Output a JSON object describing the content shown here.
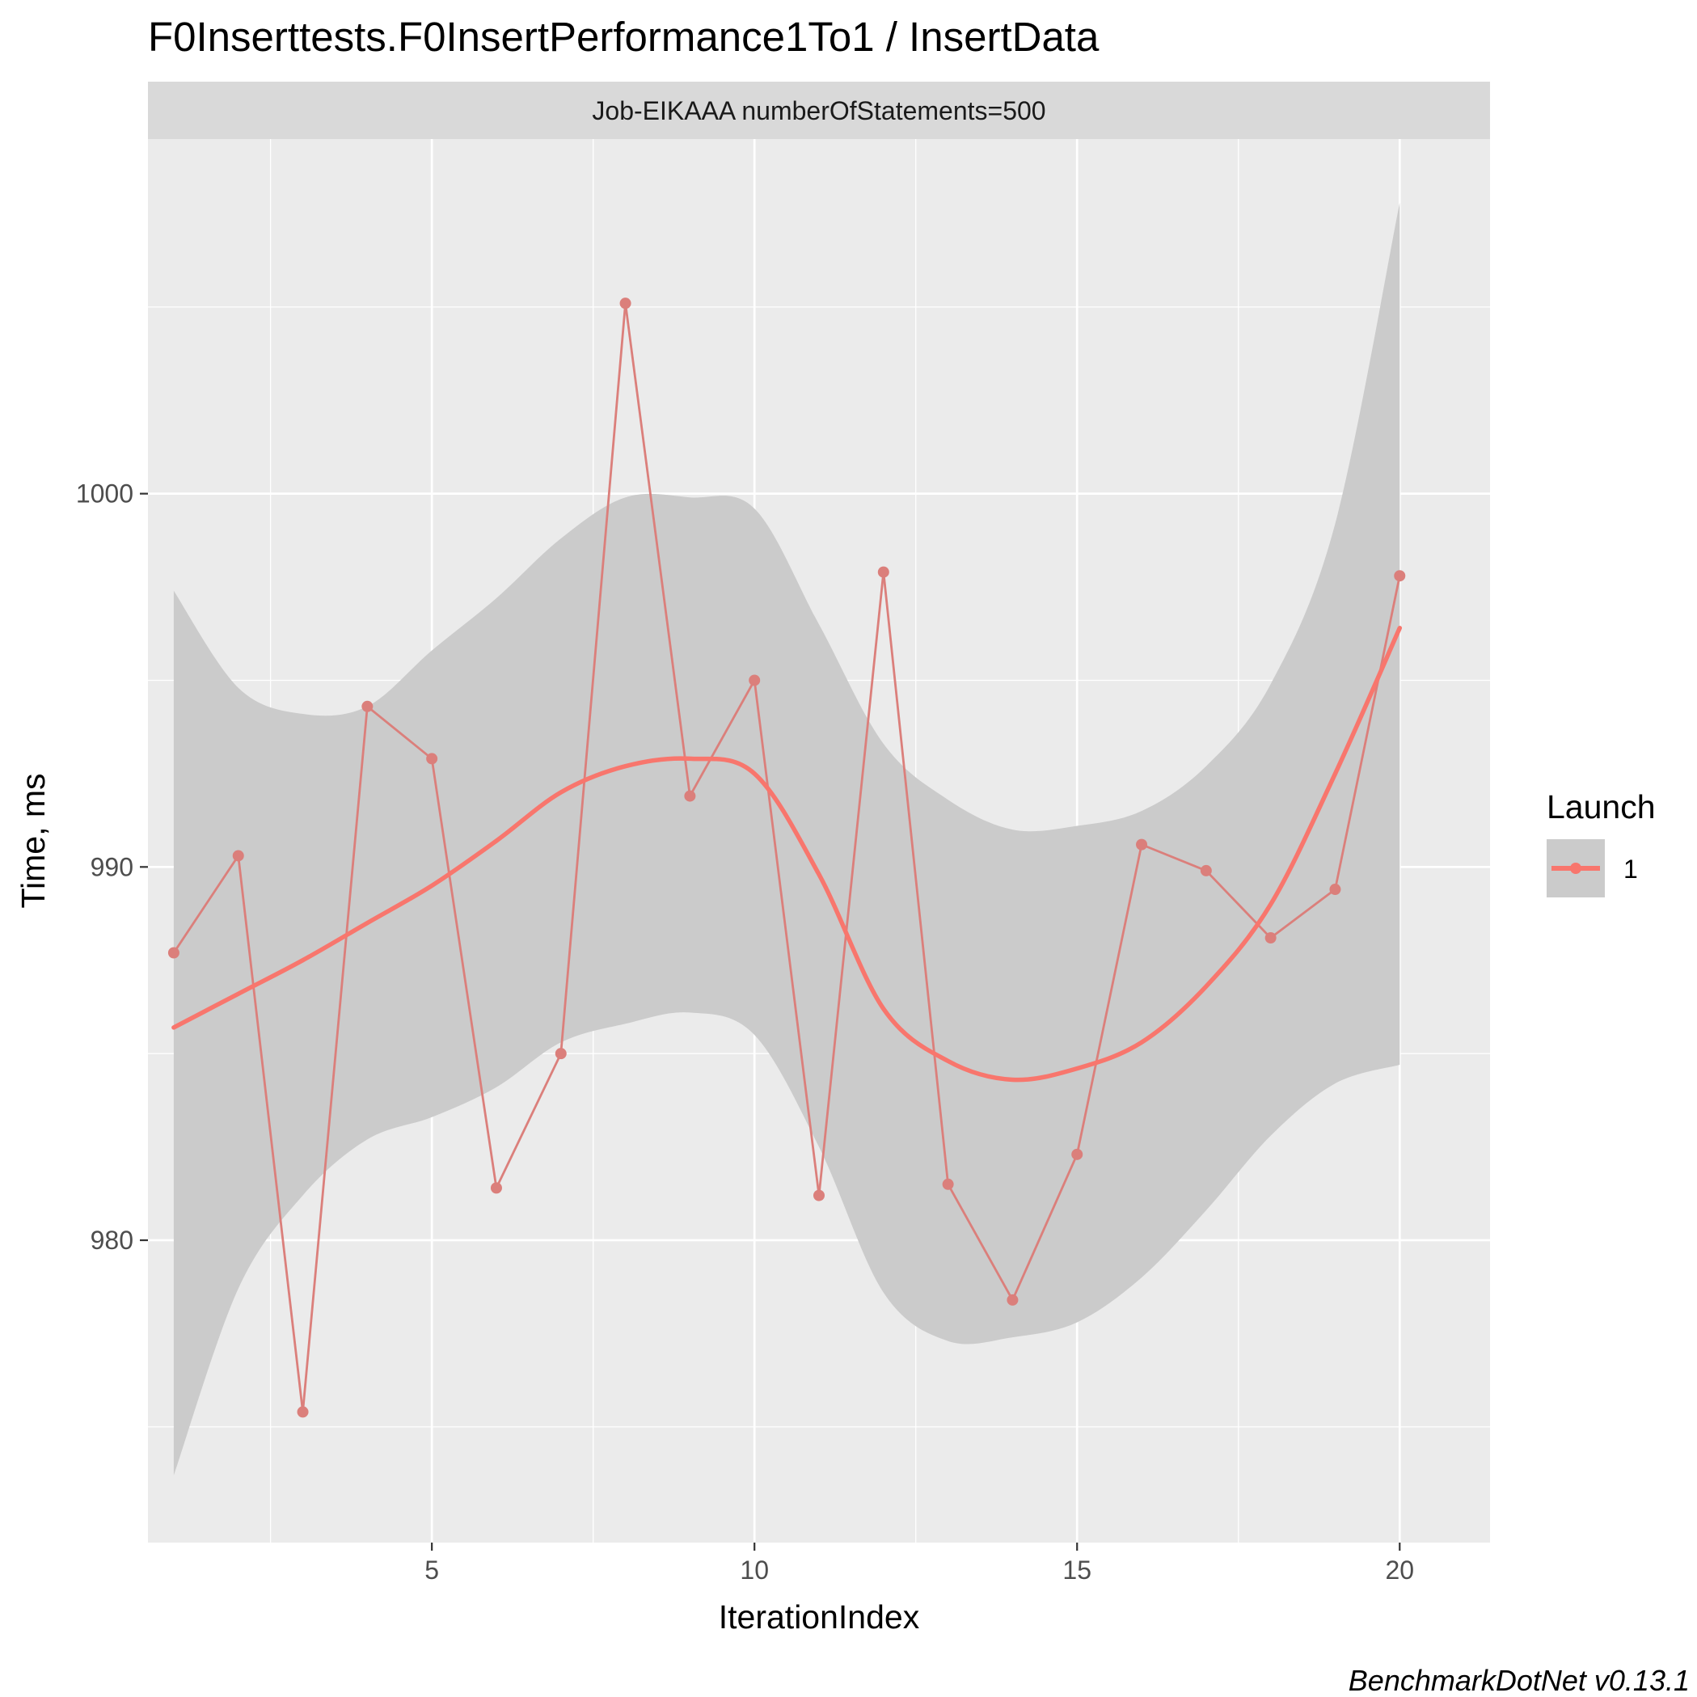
{
  "chart_data": {
    "type": "line",
    "title": "F0Inserttests.F0InsertPerformance1To1 / InsertData",
    "facet_label": "Job-EIKAAA numberOfStatements=500",
    "xlabel": "IterationIndex",
    "ylabel": "Time, ms",
    "xlim": [
      0.6,
      21.4
    ],
    "ylim": [
      971.9,
      1009.5
    ],
    "x_ticks": [
      5,
      10,
      15,
      20
    ],
    "y_ticks": [
      980,
      990,
      1000
    ],
    "grid": true,
    "legend_position": "right",
    "legend_title": "Launch",
    "caption": "BenchmarkDotNet v0.13.1",
    "colors": {
      "series": "#F8766D",
      "series_segment_alt": "#DB7F7B",
      "panel": "#EBEBEB",
      "strip": "#D9D9D9",
      "band": "#CBCBCB",
      "grid": "#FFFFFF"
    },
    "series": [
      {
        "name": "1",
        "x": [
          1,
          2,
          3,
          4,
          5,
          6,
          7,
          8,
          9,
          10,
          11,
          12,
          13,
          14,
          15,
          16,
          17,
          18,
          19,
          20
        ],
        "values": [
          987.7,
          990.3,
          975.4,
          994.3,
          992.9,
          981.4,
          985.0,
          1005.1,
          991.9,
          995.0,
          981.2,
          997.9,
          981.5,
          978.4,
          982.3,
          990.6,
          989.9,
          988.1,
          989.4,
          997.8
        ]
      }
    ],
    "smooth": {
      "method": "loess",
      "x": [
        1,
        2,
        3,
        4,
        5,
        6,
        7,
        8,
        9,
        10,
        11,
        12,
        13,
        14,
        15,
        16,
        17,
        18,
        19,
        20
      ],
      "fit": [
        985.7,
        986.6,
        987.5,
        988.5,
        989.5,
        990.7,
        992.0,
        992.7,
        992.9,
        992.5,
        989.8,
        986.2,
        984.8,
        984.3,
        984.6,
        985.3,
        986.8,
        989.0,
        992.5,
        996.4
      ],
      "lower": [
        973.7,
        978.7,
        981.2,
        982.7,
        983.3,
        984.1,
        985.3,
        985.8,
        986.1,
        985.5,
        982.5,
        978.6,
        977.3,
        977.4,
        977.8,
        979.0,
        980.8,
        982.8,
        984.2,
        984.7
      ],
      "upper": [
        997.4,
        994.8,
        994.1,
        994.3,
        995.8,
        997.2,
        998.8,
        999.9,
        999.9,
        999.6,
        996.5,
        993.3,
        991.8,
        991.0,
        991.1,
        991.5,
        992.7,
        994.9,
        999.2,
        1007.8
      ]
    }
  }
}
